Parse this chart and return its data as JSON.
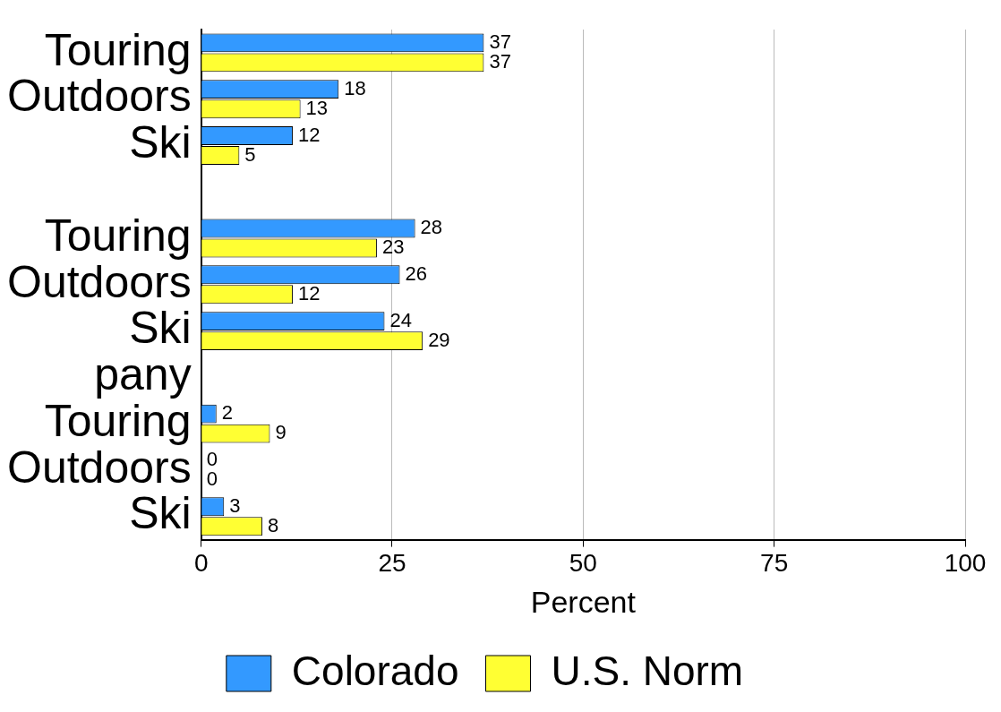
{
  "chart_data": {
    "type": "bar",
    "orientation": "horizontal",
    "xlabel": "Percent",
    "categories": [
      "Touring",
      "Outdoors",
      "Ski",
      null,
      "Touring",
      "Outdoors",
      "Ski",
      "pany",
      "Touring",
      "Outdoors",
      "Ski"
    ],
    "series": [
      {
        "name": "Colorado",
        "color": "#3399ff",
        "values": [
          37,
          18,
          12,
          null,
          28,
          26,
          24,
          null,
          2,
          0,
          3
        ]
      },
      {
        "name": "U.S. Norm",
        "color": "#ffff33",
        "values": [
          37,
          13,
          5,
          null,
          23,
          12,
          29,
          null,
          9,
          0,
          8
        ]
      }
    ],
    "xlim": [
      0,
      100
    ],
    "xticks": [
      0,
      25,
      50,
      75,
      100
    ],
    "grid": "x",
    "legend": "bottom",
    "data_labels": true
  }
}
